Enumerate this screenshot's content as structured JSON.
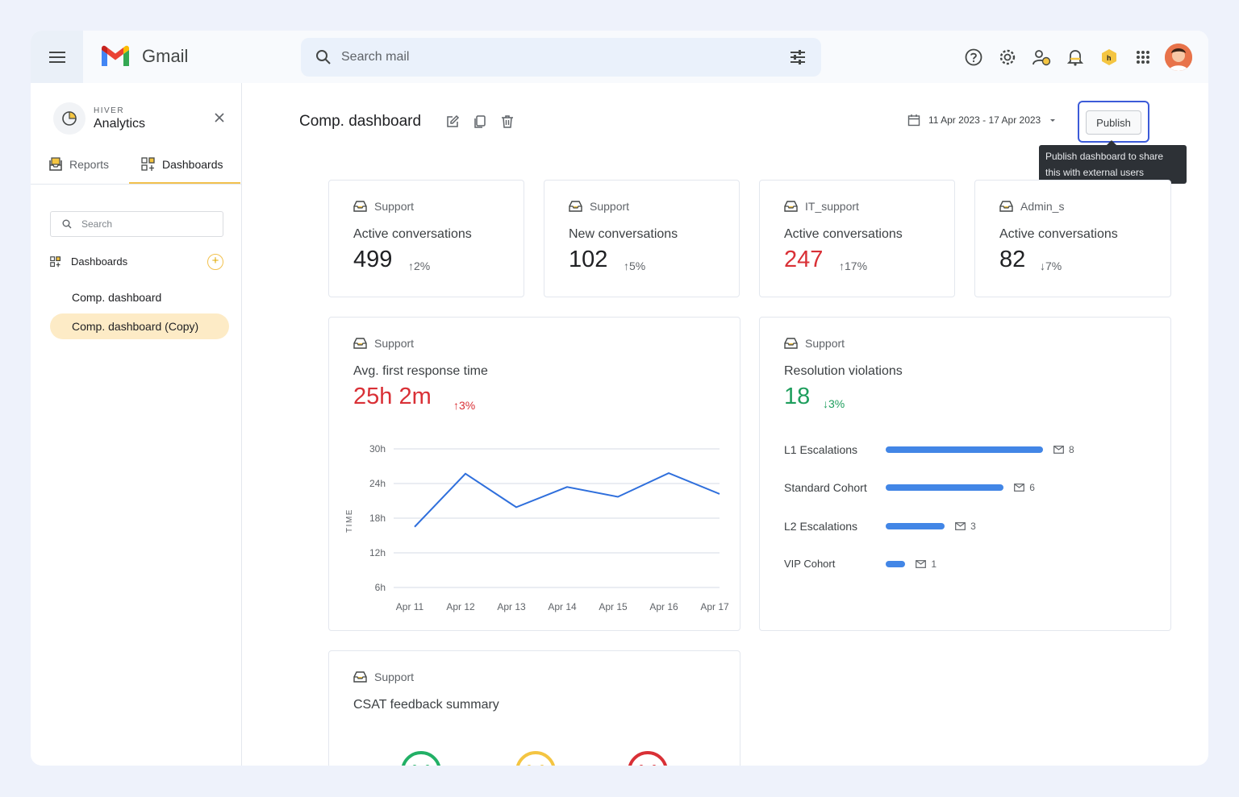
{
  "topbar": {
    "app_name": "Gmail",
    "search_placeholder": "Search mail"
  },
  "sidebar": {
    "brand_small": "HIVER",
    "brand_big": "Analytics",
    "tabs": [
      {
        "label": "Reports"
      },
      {
        "label": "Dashboards"
      }
    ],
    "search_placeholder": "Search",
    "section_label": "Dashboards",
    "items": [
      {
        "label": "Comp. dashboard"
      },
      {
        "label": "Comp. dashboard (Copy)"
      }
    ]
  },
  "header": {
    "title": "Comp. dashboard",
    "date_range": "11 Apr 2023 - 17 Apr 2023",
    "publish_label": "Publish",
    "tooltip_line1": "Publish dashboard to share",
    "tooltip_line2": "this with external users"
  },
  "cards": [
    {
      "tag": "Support",
      "title": "Active conversations",
      "value": "499",
      "delta": "2%",
      "direction": "up"
    },
    {
      "tag": "Support",
      "title": "New conversations",
      "value": "102",
      "delta": "5%",
      "direction": "up"
    },
    {
      "tag": "IT_support",
      "title": "Active conversations",
      "value": "247",
      "delta": "17%",
      "direction": "up"
    },
    {
      "tag": "Admin_s",
      "title": "Active conversations",
      "value": "82",
      "delta": "7%",
      "direction": "down"
    }
  ],
  "response_card": {
    "tag": "Support",
    "title": "Avg. first response time",
    "value": "25h 2m",
    "delta": "3%"
  },
  "violations_card": {
    "tag": "Support",
    "title": "Resolution violations",
    "value": "18",
    "delta": "3%"
  },
  "chart_data": {
    "type": "line",
    "title": "",
    "xlabel": "",
    "ylabel": "TIME",
    "x": [
      "Apr 11",
      "Apr 12",
      "Apr 13",
      "Apr 14",
      "Apr 15",
      "Apr 16",
      "Apr 17"
    ],
    "series": [
      {
        "values": [
          16.5,
          25.7,
          19.9,
          23.4,
          21.7,
          25.8,
          22.2
        ]
      }
    ],
    "y_ticks": [
      "30h",
      "24h",
      "18h",
      "12h",
      "6h"
    ],
    "y_tick_values": [
      30,
      24,
      18,
      12,
      6
    ],
    "ylim": [
      6,
      30
    ],
    "grid": true,
    "color": "#2f6fdc"
  },
  "violations_bars": {
    "type": "bar",
    "categories": [
      "L1 Escalations",
      "Standard Cohort",
      "L2 Escalations",
      "VIP Cohort"
    ],
    "values": [
      8,
      6,
      3,
      1
    ],
    "color": "#4286e6"
  },
  "csat_card": {
    "tag": "Support",
    "title": "CSAT feedback summary",
    "faces": [
      "happy-face",
      "neutral-face",
      "sad-face"
    ],
    "colors": [
      "#22b066",
      "#f4c542",
      "#d93036"
    ]
  },
  "colors": {
    "accent": "#f2c14e",
    "selected_bg": "#fdebc6",
    "publish_border": "#3c5bd8"
  }
}
